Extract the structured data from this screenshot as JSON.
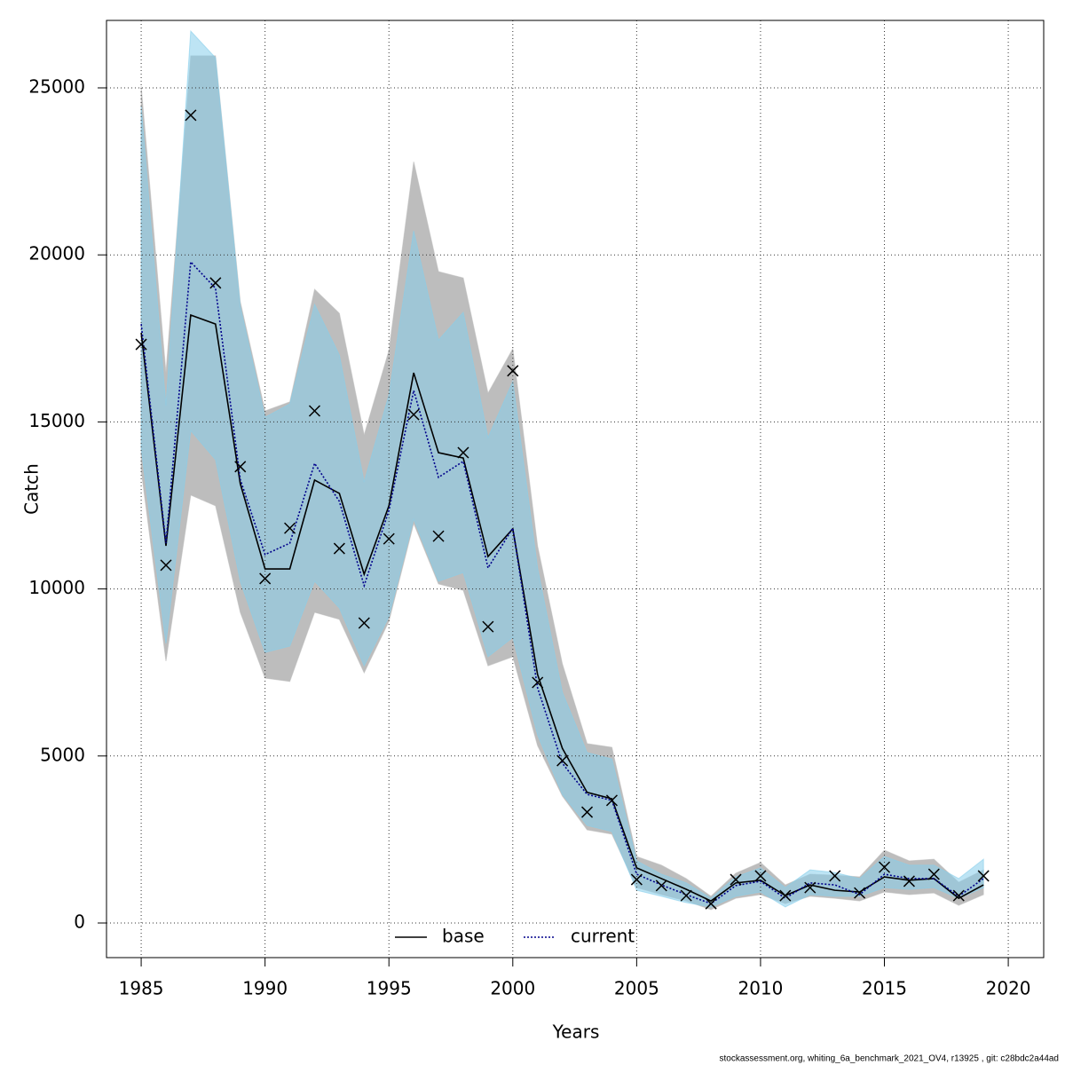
{
  "chart_data": {
    "type": "line",
    "xlabel": "Years",
    "ylabel": "Catch",
    "footer": "stockassessment.org, whiting_6a_benchmark_2021_OV4, r13925 , git: c28bdc2a44ad",
    "x": [
      1985,
      1986,
      1987,
      1988,
      1989,
      1990,
      1991,
      1992,
      1993,
      1994,
      1995,
      1996,
      1997,
      1998,
      1999,
      2000,
      2001,
      2002,
      2003,
      2004,
      2005,
      2006,
      2007,
      2008,
      2009,
      2010,
      2011,
      2012,
      2013,
      2014,
      2015,
      2016,
      2017,
      2018,
      2019
    ],
    "xlim": [
      1983.6,
      2021.43
    ],
    "ylim": [
      -1036,
      27019
    ],
    "xticks": [
      1985,
      1990,
      1995,
      2000,
      2005,
      2010,
      2015,
      2020
    ],
    "yticks": [
      0,
      5000,
      10000,
      15000,
      20000,
      25000
    ],
    "grid": true,
    "legend": "bottom",
    "series": [
      {
        "name": "base",
        "color": "#000000",
        "band_color": "#bdbdbd",
        "values": [
          17670,
          11290,
          18200,
          17930,
          13150,
          10600,
          10600,
          13260,
          12860,
          10440,
          12490,
          16470,
          14080,
          13920,
          10970,
          11800,
          7440,
          5230,
          3910,
          3720,
          1650,
          1330,
          1010,
          660,
          1200,
          1280,
          820,
          1140,
          980,
          930,
          1380,
          1280,
          1330,
          740,
          1140
        ],
        "upper": [
          25050,
          16470,
          25960,
          25960,
          18600,
          15330,
          15600,
          18970,
          18250,
          14610,
          17140,
          22790,
          19500,
          19310,
          15860,
          17190,
          11290,
          7760,
          5370,
          5260,
          1990,
          1730,
          1330,
          800,
          1490,
          1810,
          1140,
          1460,
          1430,
          1380,
          2180,
          1860,
          1910,
          1220,
          1590
        ],
        "lower": [
          13550,
          7840,
          12810,
          12490,
          9300,
          7330,
          7230,
          9300,
          9090,
          7490,
          9030,
          11960,
          10150,
          9960,
          7700,
          7970,
          5310,
          3800,
          2790,
          2660,
          1060,
          850,
          660,
          400,
          740,
          850,
          580,
          800,
          740,
          660,
          930,
          850,
          900,
          530,
          850
        ]
      },
      {
        "name": "current",
        "color": "#00008b",
        "band_color": "#87ceeb",
        "values": [
          17930,
          11370,
          19790,
          19000,
          13280,
          11030,
          11370,
          13760,
          12620,
          10100,
          12350,
          15940,
          13340,
          13820,
          10630,
          11820,
          7040,
          4780,
          3850,
          3670,
          1460,
          1140,
          850,
          580,
          1120,
          1250,
          740,
          1200,
          1140,
          850,
          1460,
          1330,
          1330,
          800,
          1330
        ],
        "upper": [
          24440,
          15490,
          26700,
          25900,
          18460,
          15140,
          15540,
          18520,
          17000,
          13200,
          15810,
          20720,
          17450,
          18280,
          14530,
          16210,
          10630,
          6910,
          5100,
          4910,
          1860,
          1460,
          1200,
          740,
          1380,
          1650,
          1060,
          1590,
          1510,
          1330,
          1990,
          1730,
          1730,
          1330,
          1910
        ],
        "lower": [
          14210,
          8370,
          14740,
          13870,
          10230,
          8100,
          8290,
          10230,
          9430,
          7700,
          9170,
          12090,
          10230,
          10490,
          7970,
          8550,
          5630,
          3850,
          2920,
          2740,
          980,
          800,
          610,
          480,
          800,
          930,
          480,
          850,
          800,
          800,
          1060,
          1010,
          1060,
          740,
          1060
        ]
      }
    ],
    "observations": {
      "color": "#000000",
      "values": [
        17320,
        10710,
        24180,
        19160,
        13660,
        10310,
        11820,
        15330,
        11210,
        8980,
        11500,
        15220,
        11580,
        14080,
        8870,
        16530,
        7200,
        4860,
        3320,
        3670,
        1300,
        1120,
        820,
        580,
        1300,
        1410,
        820,
        1060,
        1410,
        900,
        1670,
        1250,
        1460,
        820,
        1410
      ]
    }
  }
}
